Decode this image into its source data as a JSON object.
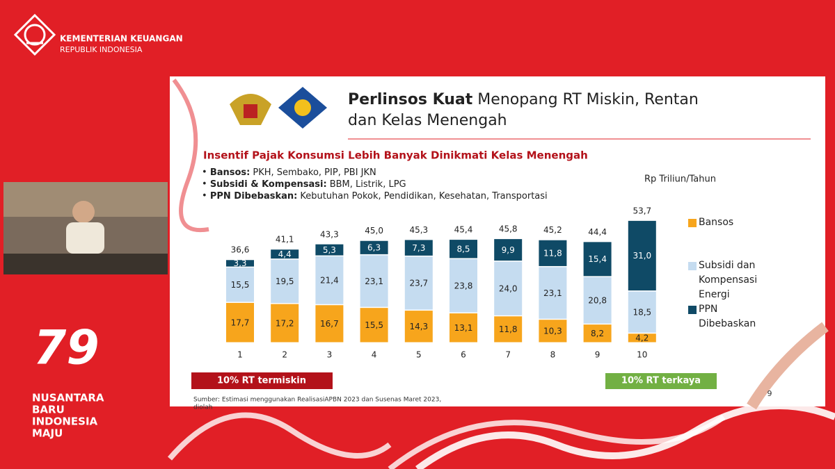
{
  "header": {
    "org": "KEMENTERIAN KEUANGAN",
    "sub": "REPUBLIK INDONESIA"
  },
  "event": {
    "lines": [
      "NUSANTARA",
      "BARU",
      "INDONESIA",
      "MAJU"
    ]
  },
  "slide": {
    "title": {
      "bold": "Perlinsos Kuat",
      "line1": "Menopang RT Miskin, Rentan",
      "line2": "dan Kelas Menengah"
    },
    "notes": [
      {
        "term": "Bansos:",
        "text": "PKH, Sembako, PIP, PBI JKN"
      },
      {
        "term": "Subsidi & Kompensasi:",
        "text": "BBM, Listrik, LPG"
      },
      {
        "term": "PPN Dibebaskan:",
        "text": "Kebutuhan Pokok, Pendidikan, Kesehatan, Transportasi"
      }
    ],
    "source": [
      "Sumber: Estimasi menggunakan RealisasiAPBN 2023 dan Susenas Maret 2023,",
      "diolah"
    ],
    "page_number": 9
  },
  "chart_data": {
    "type": "bar",
    "stacked": true,
    "subtitle": "Insentif Pajak Konsumsi Lebih Banyak Dinikmati Kelas Menengah",
    "unit": "Rp Triliun/Tahun",
    "categories": [
      "1",
      "2",
      "3",
      "4",
      "5",
      "6",
      "7",
      "8",
      "9",
      "10"
    ],
    "series": [
      {
        "name": "Bansos",
        "color": "#f7a51c",
        "values": [
          17.7,
          17.2,
          16.7,
          15.5,
          14.3,
          13.1,
          11.8,
          10.3,
          8.2,
          4.2
        ],
        "value_labels": [
          "17,7",
          "17,2",
          "16,7",
          "15,5",
          "14,3",
          "13,1",
          "11,8",
          "10,3",
          "8,2",
          "4,2"
        ]
      },
      {
        "name": "Subsidi dan Kompensasi Energi",
        "color": "#c5dcf0",
        "values": [
          15.5,
          19.5,
          21.4,
          23.1,
          23.7,
          23.8,
          24.0,
          23.1,
          20.8,
          18.5
        ],
        "value_labels": [
          "15,5",
          "19,5",
          "21,4",
          "23,1",
          "23,7",
          "23,8",
          "24,0",
          "23,1",
          "20,8",
          "18,5"
        ]
      },
      {
        "name": "PPN Dibebaskan",
        "color": "#0f4a66",
        "values": [
          3.3,
          4.4,
          5.3,
          6.3,
          7.3,
          8.5,
          9.9,
          11.8,
          15.4,
          31.0
        ],
        "value_labels": [
          "3,3",
          "4,4",
          "5,3",
          "6,3",
          "7,3",
          "8,5",
          "9,9",
          "11,8",
          "15,4",
          "31,0"
        ]
      }
    ],
    "totals": {
      "values": [
        36.6,
        41.1,
        43.3,
        45.0,
        45.3,
        45.4,
        45.8,
        45.2,
        44.4,
        53.7
      ],
      "value_labels": [
        "36,6",
        "41,1",
        "43,3",
        "45,0",
        "45,3",
        "45,4",
        "45,8",
        "45,2",
        "44,4",
        "53,7"
      ]
    },
    "group_labels": {
      "left": "10% RT termiskin",
      "right": "10% RT terkaya"
    }
  }
}
